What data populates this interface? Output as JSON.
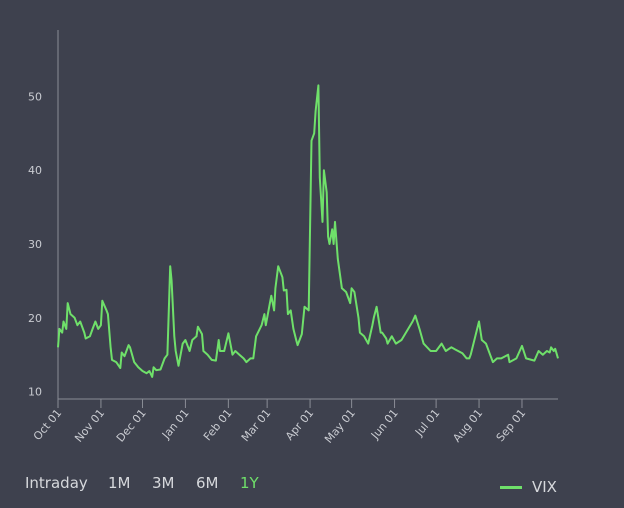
{
  "chart_data": {
    "type": "line",
    "title": "",
    "xlabel": "",
    "ylabel": "",
    "x_unit": "days since Oct 01",
    "ylim": [
      9,
      59
    ],
    "xlim": [
      0,
      361
    ],
    "grid": false,
    "y_ticks": [
      10,
      20,
      30,
      40,
      50
    ],
    "x_ticks": [
      {
        "day": 0,
        "label": "Oct 01"
      },
      {
        "day": 31,
        "label": "Nov 01"
      },
      {
        "day": 61,
        "label": "Dec 01"
      },
      {
        "day": 92,
        "label": "Jan 01"
      },
      {
        "day": 123,
        "label": "Feb 01"
      },
      {
        "day": 151,
        "label": "Mar 01"
      },
      {
        "day": 182,
        "label": "Apr 01"
      },
      {
        "day": 212,
        "label": "May 01"
      },
      {
        "day": 243,
        "label": "Jun 01"
      },
      {
        "day": 273,
        "label": "Jul 01"
      },
      {
        "day": 304,
        "label": "Aug 01"
      },
      {
        "day": 335,
        "label": "Sep 01"
      }
    ],
    "legend_position": "bottom-right",
    "series": [
      {
        "name": "VIX",
        "color": "#6fe06a",
        "x": [
          0,
          1,
          3,
          4,
          6,
          7,
          9,
          12,
          14,
          16,
          19,
          20,
          23,
          25,
          27,
          29,
          31,
          32,
          35,
          36,
          38,
          39,
          42,
          45,
          46,
          48,
          51,
          52,
          55,
          58,
          61,
          64,
          66,
          68,
          69,
          71,
          74,
          77,
          79,
          81,
          82,
          84,
          85,
          87,
          90,
          92,
          94,
          95,
          97,
          100,
          101,
          104,
          105,
          108,
          111,
          114,
          116,
          117,
          120,
          123,
          126,
          128,
          131,
          134,
          136,
          139,
          141,
          143,
          147,
          149,
          150,
          153,
          154,
          156,
          157,
          159,
          162,
          163,
          165,
          166,
          168,
          170,
          172,
          173,
          176,
          178,
          181,
          183,
          185,
          186,
          188,
          189,
          191,
          192,
          194,
          195,
          196,
          198,
          199,
          200,
          202,
          205,
          208,
          211,
          212,
          214,
          217,
          218,
          221,
          224,
          227,
          228,
          230,
          233,
          234,
          237,
          238,
          241,
          244,
          248,
          256,
          258,
          261,
          264,
          269,
          273,
          277,
          280,
          284,
          287,
          292,
          295,
          297,
          298,
          304,
          306,
          309,
          312,
          314,
          317,
          320,
          325,
          326,
          331,
          335,
          338,
          344,
          347,
          350,
          353,
          355,
          356,
          358,
          359,
          361
        ],
        "y": [
          16,
          18.5,
          18,
          19.5,
          18.5,
          22,
          20.5,
          20,
          19,
          19.5,
          18,
          17.2,
          17.5,
          18.5,
          19.5,
          18.5,
          19,
          22.3,
          21,
          20.5,
          16,
          14.3,
          14,
          13.2,
          15.3,
          14.8,
          16.3,
          16,
          14,
          13.3,
          12.8,
          12.5,
          12.8,
          12,
          13.3,
          12.9,
          13,
          14.5,
          15,
          27,
          25,
          17.5,
          15.5,
          13.5,
          16.5,
          17,
          16,
          15.5,
          17,
          17.5,
          18.8,
          17.8,
          15.5,
          15,
          14.3,
          14.2,
          17,
          15.5,
          15.5,
          17.9,
          15,
          15.5,
          15,
          14.5,
          14,
          14.5,
          14.5,
          17.5,
          19,
          20.5,
          19,
          22,
          23,
          21,
          24,
          27,
          25.5,
          23.7,
          23.8,
          20.5,
          21,
          18.5,
          17,
          16.3,
          17.8,
          21.5,
          21,
          44,
          45,
          48,
          51.5,
          39,
          33,
          40,
          37,
          31,
          30,
          32,
          30,
          33,
          28,
          24,
          23.5,
          22,
          24,
          23.5,
          20,
          18,
          17.5,
          16.5,
          19,
          20,
          21.5,
          18,
          18,
          17.2,
          16.5,
          17.5,
          16.5,
          17,
          19.5,
          20.3,
          18.5,
          16.5,
          15.5,
          15.5,
          16.5,
          15.5,
          16,
          15.7,
          15.2,
          14.5,
          14.5,
          15,
          19.5,
          17,
          16.5,
          15,
          14,
          14.5,
          14.5,
          15,
          14,
          14.5,
          16.2,
          14.5,
          14.2,
          15.5,
          15,
          15.5,
          15.3,
          16,
          15.5,
          15.8,
          14.5
        ]
      }
    ]
  },
  "controls": {
    "ranges": [
      "Intraday",
      "1M",
      "3M",
      "6M",
      "1Y"
    ],
    "active_range": "1Y",
    "active_color": "#6fe06a",
    "inactive_color": "#d6d8dc"
  },
  "legend": {
    "label": "VIX"
  }
}
